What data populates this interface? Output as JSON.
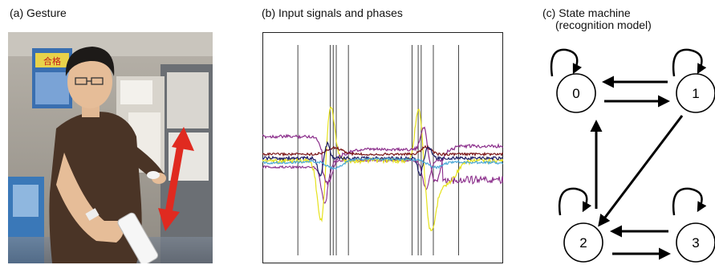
{
  "captions": {
    "a": "(a) Gesture",
    "b": "(b) Input signals and phases",
    "c_line1": "(c) State machine",
    "c_line2": "(recognition model)"
  },
  "photo": {
    "poster_text": "合格",
    "arrow_color": "#e02a20"
  },
  "signals": {
    "phase_boundaries": [
      0.08,
      0.24,
      0.255,
      0.27,
      0.33,
      0.645,
      0.675,
      0.69,
      0.75,
      0.875
    ],
    "series_colors": [
      "#e6e21c",
      "#8b2e8b",
      "#7a1416",
      "#1c1c66",
      "#4aa7d6"
    ]
  },
  "state_machine": {
    "states": [
      {
        "id": "s0",
        "label": "0"
      },
      {
        "id": "s1",
        "label": "1"
      },
      {
        "id": "s2",
        "label": "2"
      },
      {
        "id": "s3",
        "label": "3"
      }
    ],
    "transitions": [
      {
        "from": "s0",
        "to": "s0"
      },
      {
        "from": "s1",
        "to": "s1"
      },
      {
        "from": "s2",
        "to": "s2"
      },
      {
        "from": "s3",
        "to": "s3"
      },
      {
        "from": "s0",
        "to": "s1"
      },
      {
        "from": "s1",
        "to": "s0"
      },
      {
        "from": "s1",
        "to": "s2"
      },
      {
        "from": "s2",
        "to": "s0"
      },
      {
        "from": "s2",
        "to": "s3"
      },
      {
        "from": "s3",
        "to": "s2"
      }
    ]
  }
}
